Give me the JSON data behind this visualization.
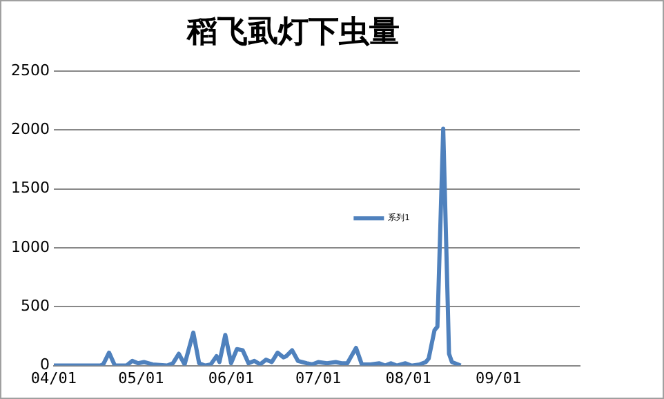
{
  "chart_data": {
    "type": "line",
    "title": "稻飞虱灯下虫量",
    "x": [
      "--04-01",
      "--04-17",
      "--04-18",
      "--04-20",
      "--04-22",
      "--04-26",
      "--04-28",
      "--04-30",
      "--05-02",
      "--05-05",
      "--05-10",
      "--05-12",
      "--05-14",
      "--05-16",
      "--05-19",
      "--05-21",
      "--05-23",
      "--05-25",
      "--05-27",
      "--05-28",
      "--05-30",
      "--06-01",
      "--06-03",
      "--06-05",
      "--06-07",
      "--06-09",
      "--06-11",
      "--06-13",
      "--06-15",
      "--06-17",
      "--06-19",
      "--06-20",
      "--06-22",
      "--06-24",
      "--06-27",
      "--06-29",
      "--07-01",
      "--07-04",
      "--07-07",
      "--07-09",
      "--07-11",
      "--07-14",
      "--07-16",
      "--07-19",
      "--07-22",
      "--07-24",
      "--07-26",
      "--07-28",
      "--07-31",
      "--08-02",
      "--08-05",
      "--08-07",
      "--08-08",
      "--08-10",
      "--08-11",
      "--08-13",
      "--08-15",
      "--08-16",
      "--08-19"
    ],
    "series": [
      {
        "name": "系列1",
        "color": "#4f81bd",
        "values": [
          0,
          0,
          10,
          110,
          0,
          0,
          40,
          20,
          30,
          10,
          0,
          20,
          100,
          10,
          280,
          20,
          0,
          10,
          80,
          30,
          260,
          20,
          140,
          130,
          20,
          40,
          10,
          50,
          30,
          110,
          70,
          80,
          130,
          40,
          20,
          10,
          30,
          20,
          30,
          20,
          20,
          150,
          10,
          10,
          20,
          0,
          20,
          0,
          20,
          0,
          10,
          30,
          60,
          300,
          330,
          2010,
          100,
          30,
          0
        ]
      }
    ],
    "xlim": [
      "--04-01",
      "--09-29"
    ],
    "xticks": [
      {
        "value": "--04-01",
        "label": "04/01"
      },
      {
        "value": "--05-01",
        "label": "05/01"
      },
      {
        "value": "--06-01",
        "label": "06/01"
      },
      {
        "value": "--07-01",
        "label": "07/01"
      },
      {
        "value": "--08-01",
        "label": "08/01"
      },
      {
        "value": "--09-01",
        "label": "09/01"
      }
    ],
    "ylim": [
      0,
      2500
    ],
    "yticks": [
      0,
      500,
      1000,
      1500,
      2000,
      2500
    ],
    "grid": "y",
    "legend": "right",
    "marker": "none",
    "line_style": "solid"
  }
}
